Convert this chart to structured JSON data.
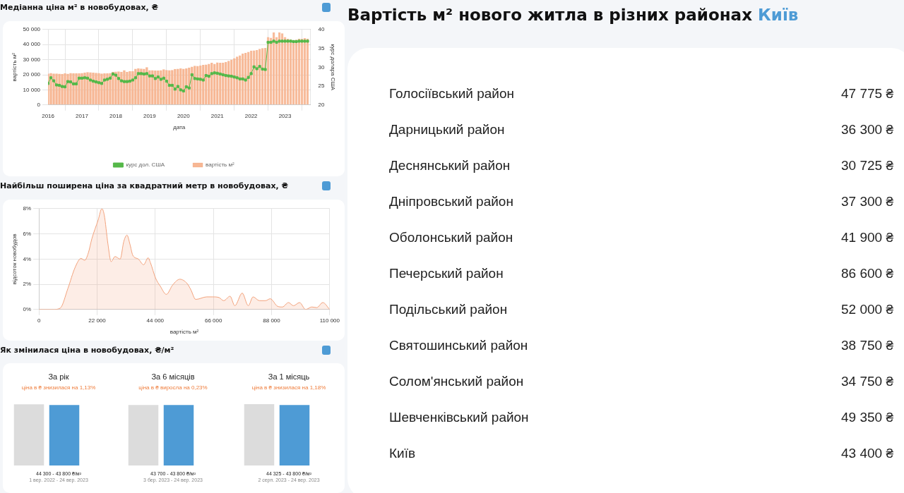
{
  "chart_data": [
    {
      "type": "bar",
      "title": "Медіанна ціна м² в новобудовах, ₴",
      "xlabel": "дата",
      "ylabel": "вартість м²",
      "y2label": "курс долара США",
      "grid": true,
      "legend": "bottom",
      "marker": "square",
      "x": [
        "2016-01",
        "2016-02",
        "2016-03",
        "2016-04",
        "2016-05",
        "2016-06",
        "2016-07",
        "2016-08",
        "2016-09",
        "2016-10",
        "2016-11",
        "2016-12",
        "2017-01",
        "2017-02",
        "2017-03",
        "2017-04",
        "2017-05",
        "2017-06",
        "2017-07",
        "2017-08",
        "2017-09",
        "2017-10",
        "2017-11",
        "2017-12",
        "2018-01",
        "2018-02",
        "2018-03",
        "2018-04",
        "2018-05",
        "2018-06",
        "2018-07",
        "2018-08",
        "2018-09",
        "2018-10",
        "2018-11",
        "2018-12",
        "2019-01",
        "2019-02",
        "2019-03",
        "2019-04",
        "2019-05",
        "2019-06",
        "2019-07",
        "2019-08",
        "2019-09",
        "2019-10",
        "2019-11",
        "2019-12",
        "2020-01",
        "2020-02",
        "2020-03",
        "2020-04",
        "2020-05",
        "2020-06",
        "2020-07",
        "2020-08",
        "2020-09",
        "2020-10",
        "2020-11",
        "2020-12",
        "2021-01",
        "2021-02",
        "2021-03",
        "2021-04",
        "2021-05",
        "2021-06",
        "2021-07",
        "2021-08",
        "2021-09",
        "2021-10",
        "2021-11",
        "2021-12",
        "2022-01",
        "2022-02",
        "2022-03",
        "2022-04",
        "2022-05",
        "2022-06",
        "2022-07",
        "2022-08",
        "2022-09",
        "2022-10",
        "2022-11",
        "2022-12",
        "2023-01",
        "2023-02",
        "2023-03",
        "2023-04",
        "2023-05",
        "2023-06",
        "2023-07",
        "2023-08",
        "2023-09"
      ],
      "xlim": [
        "2016-01",
        "2023-10"
      ],
      "xticks": [
        {
          "value": "2016",
          "label": "2016"
        },
        {
          "value": "2017",
          "label": "2017"
        },
        {
          "value": "2018",
          "label": "2018"
        },
        {
          "value": "2019",
          "label": "2019"
        },
        {
          "value": "2020",
          "label": "2020"
        },
        {
          "value": "2021",
          "label": "2021"
        },
        {
          "value": "2022",
          "label": "2022"
        },
        {
          "value": "2023",
          "label": "2023"
        }
      ],
      "ylim": [
        0,
        50000
      ],
      "yticks": [
        {
          "value": 0,
          "label": "0"
        },
        {
          "value": 10000,
          "label": "10 000"
        },
        {
          "value": 20000,
          "label": "20 000"
        },
        {
          "value": 30000,
          "label": "30 000"
        },
        {
          "value": 40000,
          "label": "40 000"
        },
        {
          "value": 50000,
          "label": "50 000"
        }
      ],
      "y2lim": [
        20,
        40
      ],
      "y2ticks": [
        20,
        25,
        30,
        35,
        40
      ],
      "series": [
        {
          "name": "вартість м²",
          "type": "bar",
          "color": "#f7b794",
          "values": [
            20800,
            21200,
            20800,
            20800,
            20700,
            20600,
            20900,
            20700,
            21200,
            21100,
            21100,
            21000,
            21200,
            21400,
            21800,
            21600,
            21400,
            21300,
            21200,
            20800,
            20900,
            21000,
            21200,
            22000,
            22100,
            22200,
            22000,
            23000,
            22000,
            22500,
            22300,
            24000,
            24200,
            24100,
            24000,
            25000,
            23000,
            23000,
            22800,
            22800,
            23000,
            23600,
            23200,
            23000,
            23200,
            23800,
            24000,
            24200,
            24000,
            24200,
            24800,
            25400,
            26000,
            25800,
            26200,
            26500,
            26800,
            27200,
            28000,
            27300,
            28200,
            28000,
            28100,
            28500,
            29200,
            30100,
            31000,
            32000,
            32800,
            34000,
            34500,
            35200,
            36000,
            36100,
            36300,
            37200,
            37600,
            37800,
            45000,
            44500,
            48000,
            45000,
            48000,
            47500,
            45000,
            43800,
            43500,
            43000,
            43200,
            44000,
            43800,
            44300,
            44000
          ]
        },
        {
          "name": "курс дол. США",
          "type": "line",
          "axis": "y2",
          "color": "#55b849",
          "values": [
            25.7,
            27.2,
            26.4,
            25.3,
            25.2,
            24.9,
            24.8,
            26.2,
            26.1,
            25.6,
            25.6,
            27.1,
            27.1,
            27.2,
            27.1,
            26.6,
            26.3,
            26.1,
            25.9,
            25.7,
            26.6,
            26.8,
            27.1,
            28.2,
            27.9,
            27.0,
            26.4,
            26.2,
            26.2,
            26.3,
            26.6,
            27.2,
            28.3,
            28.3,
            28.2,
            28.3,
            27.7,
            27.7,
            27.0,
            27.4,
            26.8,
            27.1,
            26.3,
            25.2,
            25.2,
            24.2,
            24.9,
            24.0,
            23.7,
            24.8,
            24.5,
            28.0,
            27.0,
            26.9,
            26.8,
            26.6,
            27.8,
            27.6,
            28.3,
            28.5,
            28.4,
            28.2,
            28.0,
            27.8,
            27.7,
            27.6,
            27.4,
            27.2,
            26.9,
            26.9,
            26.6,
            27.3,
            28.3,
            30.1,
            29.6,
            30.2,
            29.5,
            29.4,
            36.6,
            36.6,
            36.9,
            36.6,
            36.9,
            36.9,
            36.9,
            36.9,
            36.9,
            36.8,
            36.8,
            36.9,
            36.9,
            36.9,
            36.9
          ]
        }
      ]
    },
    {
      "type": "area",
      "title": "Найбільш поширена ціна за квадратний метр в новобудовах, ₴",
      "xlabel": "вартість м²",
      "ylabel": "відсоток новобудов",
      "grid": true,
      "color": "#f2a27c",
      "xlim": [
        0,
        110000
      ],
      "xticks": [
        {
          "value": 0,
          "label": "0"
        },
        {
          "value": 22000,
          "label": "22 000"
        },
        {
          "value": 44000,
          "label": "44 000"
        },
        {
          "value": 66000,
          "label": "66 000"
        },
        {
          "value": 88000,
          "label": "88 000"
        },
        {
          "value": 110000,
          "label": "110 000"
        }
      ],
      "ylim": [
        0,
        8
      ],
      "yticks": [
        {
          "value": 0,
          "label": "0%"
        },
        {
          "value": 2,
          "label": "2%"
        },
        {
          "value": 4,
          "label": "4%"
        },
        {
          "value": 6,
          "label": "6%"
        },
        {
          "value": 8,
          "label": "8%"
        }
      ],
      "x": [
        0,
        5300,
        8000,
        11000,
        13600,
        15900,
        17300,
        18700,
        20000,
        22400,
        23800,
        24700,
        26100,
        27300,
        28800,
        30700,
        32100,
        33300,
        34400,
        35500,
        37600,
        39600,
        41300,
        42200,
        44100,
        45900,
        48200,
        50600,
        53300,
        56100,
        57500,
        59300,
        63500,
        65800,
        68100,
        69900,
        72300,
        74100,
        76900,
        79200,
        81000,
        83400,
        85700,
        87500,
        90300,
        92100,
        94400,
        96300,
        98600,
        100900,
        103200,
        105100,
        107400,
        110000
      ],
      "values": [
        0,
        0,
        0.1,
        1.7,
        3.3,
        4.05,
        3.9,
        4.5,
        5.6,
        7.1,
        8.0,
        7.5,
        5.2,
        3.8,
        4.2,
        4.0,
        5.4,
        5.9,
        5.2,
        4.3,
        4.0,
        3.55,
        4.1,
        3.7,
        2.5,
        1.85,
        1.2,
        1.95,
        2.4,
        2.05,
        1.55,
        0.8,
        1.0,
        1.0,
        0.95,
        0.7,
        1.05,
        0.3,
        1.3,
        0.3,
        1.0,
        0.7,
        0.7,
        0.85,
        0.25,
        0.2,
        0.55,
        0.3,
        0.55,
        0,
        0.2,
        0.15,
        0.55,
        0
      ]
    },
    {
      "type": "other",
      "title": "Як змінилася ціна в новобудовах, ₴/м²"
    },
    {
      "type": "bar",
      "title": "За рік",
      "subtitle": "ціна в ₴ знизилася на 1,13%",
      "categories": [
        null,
        null
      ],
      "values": [
        44300,
        43800
      ],
      "value_labels": [
        "44 300 -",
        "43 800 ₴/м²"
      ],
      "colors": [
        "#dcdcdc",
        "#4e9bd5"
      ],
      "tick_labels": false,
      "annotations": [
        "1 вер. 2022 - 24 вер. 2023"
      ]
    },
    {
      "type": "bar",
      "title": "За 6 місяців",
      "subtitle": "ціна в ₴ виросла на 0,23%",
      "categories": [
        null,
        null
      ],
      "values": [
        43700,
        43800
      ],
      "value_labels": [
        "43 700 -",
        "43 800 ₴/м²"
      ],
      "colors": [
        "#dcdcdc",
        "#4e9bd5"
      ],
      "tick_labels": false,
      "annotations": [
        "3 бер. 2023 - 24 вер. 2023"
      ]
    },
    {
      "type": "bar",
      "title": "За 1 місяць",
      "subtitle": "ціна в ₴ знизилася на 1,18%",
      "categories": [
        null,
        null
      ],
      "values": [
        44325,
        43800
      ],
      "value_labels": [
        "44 325 -",
        "43 800 ₴/м²"
      ],
      "colors": [
        "#dcdcdc",
        "#4e9bd5"
      ],
      "tick_labels": false,
      "annotations": [
        "2 серп. 2023 - 24 вер. 2023"
      ]
    },
    {
      "type": "other",
      "title": "Вартість м² нового житла в різних районах",
      "subtitle": "Київ",
      "categories": [
        "Голосіївський район",
        "Дарницький район",
        "Деснянський район",
        "Дніпровський район",
        "Оболонський район",
        "Печерський район",
        "Подільський район",
        "Святошинський район",
        "Солом'янський район",
        "Шевченківський район",
        "Київ"
      ],
      "value_labels": [
        "47 775 ₴",
        "36 300 ₴",
        "30 725 ₴",
        "37 300 ₴",
        "41 900 ₴",
        "86 600 ₴",
        "52 000 ₴",
        "38 750 ₴",
        "34 750 ₴",
        "49 350 ₴",
        "43 400 ₴"
      ]
    }
  ]
}
